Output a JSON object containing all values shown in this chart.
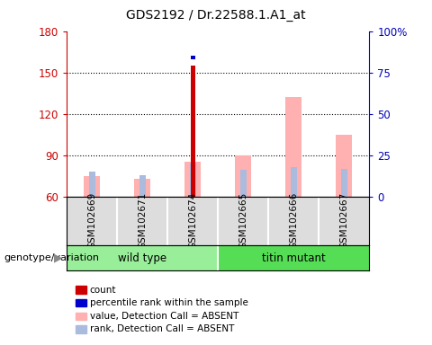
{
  "title": "GDS2192 / Dr.22588.1.A1_at",
  "samples": [
    "GSM102669",
    "GSM102671",
    "GSM102674",
    "GSM102665",
    "GSM102666",
    "GSM102667"
  ],
  "ylim_left": [
    60,
    180
  ],
  "ylim_right": [
    0,
    100
  ],
  "yticks_left": [
    60,
    90,
    120,
    150,
    180
  ],
  "yticks_right": [
    0,
    25,
    50,
    75,
    100
  ],
  "left_tick_color": "#CC0000",
  "right_tick_color": "#0000BB",
  "count_values": [
    null,
    null,
    155,
    null,
    null,
    null
  ],
  "count_color": "#CC0000",
  "percentile_rank_values": [
    null,
    null,
    84,
    null,
    null,
    null
  ],
  "percentile_rank_color": "#0000CC",
  "absent_value_values": [
    75,
    73,
    85,
    90,
    132,
    105
  ],
  "absent_value_color": "#FFB0B0",
  "absent_rank_values": [
    15,
    13,
    20,
    16,
    18,
    17
  ],
  "absent_rank_color": "#AABBDD",
  "base_value": 60,
  "bg_color": "#DDDDDD",
  "plot_bg": "#FFFFFF",
  "wt_color": "#99EE99",
  "tm_color": "#55DD55",
  "genotype_label": "genotype/variation",
  "legend_items": [
    {
      "label": "count",
      "color": "#CC0000"
    },
    {
      "label": "percentile rank within the sample",
      "color": "#0000CC"
    },
    {
      "label": "value, Detection Call = ABSENT",
      "color": "#FFB0B0"
    },
    {
      "label": "rank, Detection Call = ABSENT",
      "color": "#AABBDD"
    }
  ]
}
